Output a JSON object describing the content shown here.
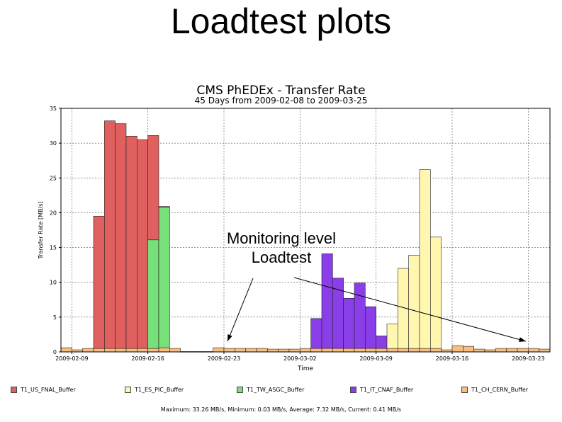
{
  "slide": {
    "title": "Loadtest plots"
  },
  "annotation": {
    "line1": "Monitoring level",
    "line2": "Loadtest"
  },
  "colors": {
    "T1_US_FNAL_Buffer": "#e06060",
    "T1_ES_PIC_Buffer": "#fff7b0",
    "T1_TW_ASGC_Buffer": "#78e078",
    "T1_IT_CNAF_Buffer": "#8a3ee8",
    "T1_CH_CERN_Buffer": "#f7be80"
  },
  "chart_data": {
    "type": "bar",
    "stacked": true,
    "title": "CMS PhEDEx - Transfer Rate",
    "subtitle": "45 Days from 2009-02-08 to 2009-03-25",
    "xlabel": "Time",
    "ylabel": "Transfer Rate [MB/s]",
    "ylim": [
      0,
      35
    ],
    "yticks": [
      "0",
      "5",
      "10",
      "15",
      "20",
      "25",
      "30",
      "35"
    ],
    "xtick_labels": [
      "2009-02-09",
      "2009-02-16",
      "2009-02-23",
      "2009-03-02",
      "2009-03-09",
      "2009-03-16",
      "2009-03-23"
    ],
    "xtick_days": [
      1,
      8,
      15,
      22,
      29,
      36,
      43
    ],
    "days": 45,
    "grid": true,
    "legend_position": "bottom",
    "series": [
      {
        "name": "T1_US_FNAL_Buffer",
        "values": [
          0,
          0,
          0,
          19.0,
          32.7,
          32.3,
          30.5,
          30.0,
          15.0,
          0.1,
          0,
          0,
          0,
          0,
          0,
          0,
          0,
          0,
          0,
          0,
          0,
          0,
          0,
          0,
          0,
          0,
          0,
          0,
          0,
          0,
          0,
          0,
          0,
          0,
          0,
          0,
          0,
          0,
          0,
          0,
          0,
          0,
          0,
          0,
          0
        ]
      },
      {
        "name": "T1_ES_PIC_Buffer",
        "values": [
          0,
          0,
          0,
          0,
          0,
          0,
          0,
          0,
          0,
          0,
          0,
          0,
          0,
          0,
          0,
          0,
          0,
          0,
          0,
          0,
          0,
          0,
          0,
          0,
          0,
          0,
          0,
          0,
          0,
          0,
          3.5,
          11.5,
          13.4,
          25.7,
          16.0,
          0,
          0,
          0,
          0,
          0,
          0,
          0,
          0,
          0,
          0
        ]
      },
      {
        "name": "T1_TW_ASGC_Buffer",
        "values": [
          0,
          0,
          0,
          0,
          0,
          0,
          0,
          0,
          15.6,
          20.2,
          0,
          0,
          0,
          0,
          0,
          0,
          0,
          0,
          0,
          0,
          0,
          0,
          0,
          0,
          0,
          0,
          0,
          0,
          0,
          0,
          0,
          0,
          0,
          0,
          0,
          0,
          0,
          0,
          0,
          0,
          0,
          0,
          0,
          0,
          0
        ]
      },
      {
        "name": "T1_IT_CNAF_Buffer",
        "values": [
          0,
          0,
          0,
          0,
          0,
          0,
          0,
          0,
          0,
          0,
          0,
          0,
          0,
          0,
          0,
          0,
          0,
          0,
          0,
          0,
          0,
          0,
          0,
          4.3,
          13.6,
          10.1,
          7.2,
          9.4,
          6.0,
          1.8,
          0,
          0,
          0,
          0,
          0,
          0,
          0,
          0,
          0,
          0,
          0,
          0,
          0,
          0,
          0
        ]
      },
      {
        "name": "T1_CH_CERN_Buffer",
        "values": [
          0.6,
          0.3,
          0.5,
          0.5,
          0.5,
          0.5,
          0.5,
          0.5,
          0.5,
          0.6,
          0.5,
          0.05,
          0.05,
          0.05,
          0.6,
          0.5,
          0.5,
          0.5,
          0.5,
          0.4,
          0.4,
          0.4,
          0.5,
          0.5,
          0.5,
          0.5,
          0.5,
          0.5,
          0.5,
          0.5,
          0.5,
          0.5,
          0.5,
          0.5,
          0.5,
          0.3,
          0.9,
          0.8,
          0.4,
          0.3,
          0.5,
          0.5,
          0.5,
          0.5,
          0.4
        ]
      }
    ],
    "stats": "Maximum: 33.26 MB/s, Minimum: 0.03 MB/s, Average: 7.32 MB/s, Current: 0.41 MB/s"
  }
}
